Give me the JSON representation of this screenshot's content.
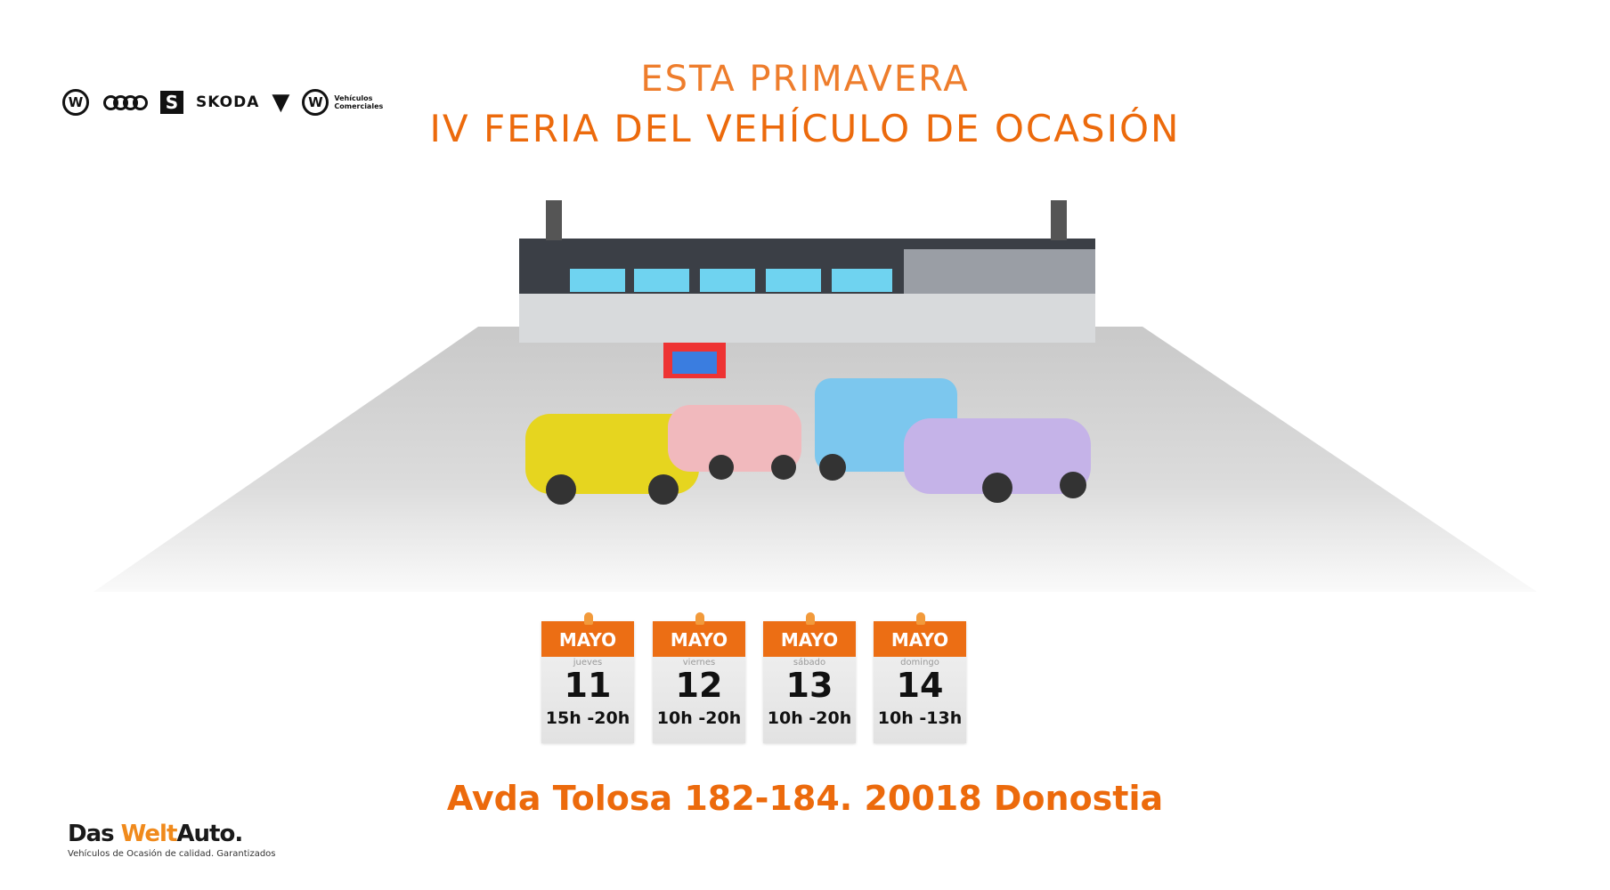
{
  "header": {
    "line1": "ESTA PRIMAVERA",
    "line2": "IV FERIA DEL VEHÍCULO DE OCASIÓN"
  },
  "brand_logos": [
    {
      "name": "Volkswagen",
      "glyph": "W"
    },
    {
      "name": "Audi"
    },
    {
      "name": "SEAT",
      "glyph": "S"
    },
    {
      "name": "ŠKODA",
      "text": "SKODA"
    },
    {
      "name": "CUPRA",
      "glyph": "▼"
    },
    {
      "name": "Volkswagen Vehículos Comerciales",
      "glyph": "W",
      "text": "Vehículos Comerciales"
    }
  ],
  "days": [
    {
      "month": "MAYO",
      "weekday": "jueves",
      "day": "11",
      "hours": "15h -20h"
    },
    {
      "month": "MAYO",
      "weekday": "viernes",
      "day": "12",
      "hours": "10h -20h"
    },
    {
      "month": "MAYO",
      "weekday": "sábado",
      "day": "13",
      "hours": "10h -20h"
    },
    {
      "month": "MAYO",
      "weekday": "domingo",
      "day": "14",
      "hours": "10h -13h"
    }
  ],
  "address": "Avda Tolosa 182-184. 20018 Donostia",
  "footer_logo": {
    "das": "Das ",
    "welt": "Welt",
    "auto": "Auto.",
    "tagline": "Vehículos de Ocasión de calidad. Garantizados"
  },
  "colors": {
    "accent": "#ec6a0c",
    "card_header": "#ec6e14"
  }
}
